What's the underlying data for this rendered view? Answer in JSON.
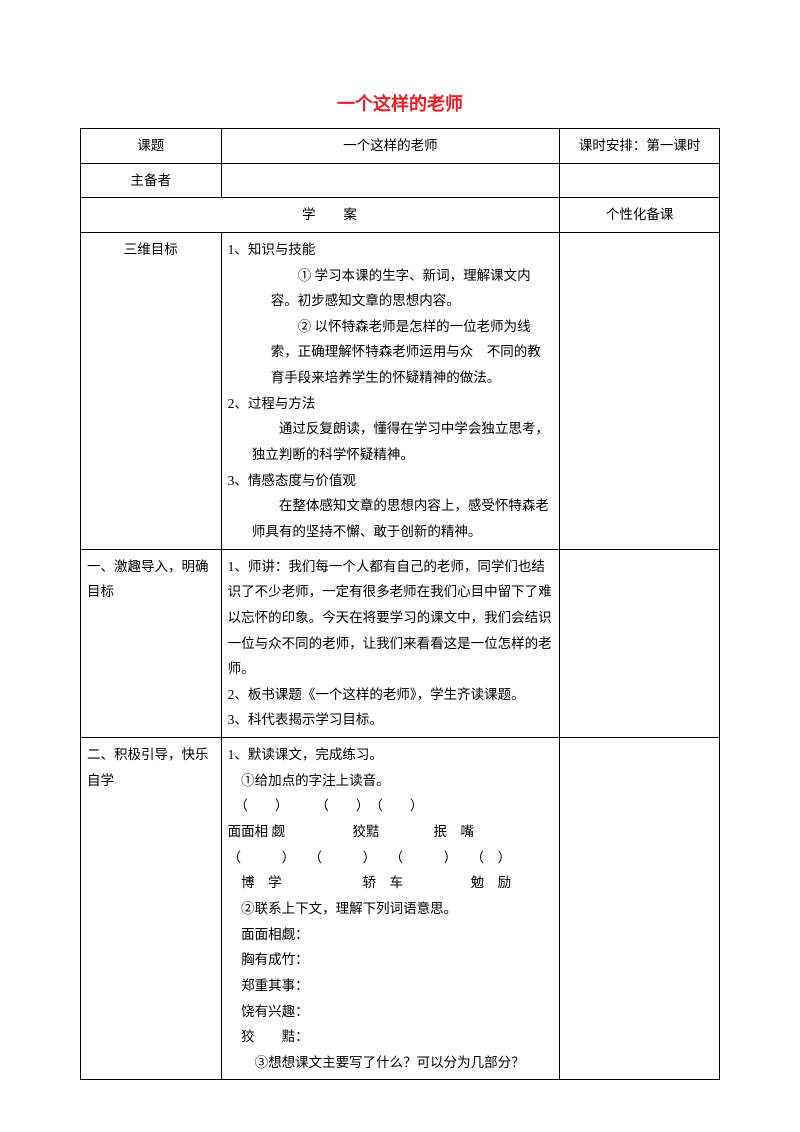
{
  "title": "一个这样的老师",
  "title_color": "#ed1c24",
  "header": {
    "topic_label": "课题",
    "topic_value": "一个这样的老师",
    "schedule": "课时安排：第一课时",
    "prep_label": "主备者",
    "prep_value": "",
    "col3_blank": ""
  },
  "subheader": {
    "left": "学",
    "mid": "案",
    "right": "个性化备课"
  },
  "rows": [
    {
      "label": "三维目标",
      "content_lines": [
        "1、知识与技能",
        "　　① 学习本课的生字、新词，理解课文内容。初步感知文章的思想内容。",
        "　　② 以怀特森老师是怎样的一位老师为线索，正确理解怀特森老师运用与众　不同的教育手段来培养学生的怀疑精神的做法。",
        "2、过程与方法",
        "　　通过反复朗读，懂得在学习中学会独立思考，独立判断的科学怀疑精神。",
        "3、情感态度与价值观",
        "　　在整体感知文章的思想内容上，感受怀特森老师具有的坚持不懈、敢于创新的精神。"
      ]
    },
    {
      "label": "一、激趣导入，明确目标",
      "content_lines": [
        "1、师讲：我们每一个人都有自己的老师，同学们也结识了不少老师，一定有很多老师在我们心目中留下了难以忘怀的印象。今天在将要学习的课文中，我们会结识一位与众不同的老师，让我们来看看这是一位怎样的老师。",
        "2、板书课题《一个这样的老师》，学生齐读课题。",
        "3、科代表揭示学习目标。"
      ]
    },
    {
      "label": "二、积极引导，快乐自学",
      "content_lines": [
        "1、默读课文，完成练习。",
        "　①给加点的字注上读音。",
        "　（　　）　　　（　　）　（　　）",
        "面面相 觑　　　　　狡黠　　　　抿　嘴",
        "（　　　）　　（　　　）　　（　　　）　　（　）",
        "　博　学　　　　　　轿　车　　　　　勉　励",
        "　②联系上下文，理解下列词语意思。",
        "　面面相觑：",
        "　胸有成竹：",
        "　郑重其事：",
        "　饶有兴趣：",
        "　狡　　黠：",
        "　　③想想课文主要写了什么？可以分为几部分？"
      ]
    }
  ],
  "colwidths": {
    "c1": "22%",
    "c2": "53%",
    "c3": "25%"
  }
}
